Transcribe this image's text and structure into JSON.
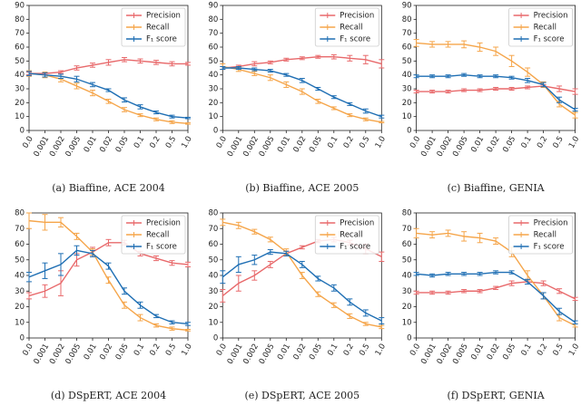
{
  "chart_data": [
    {
      "type": "line",
      "title": "(a) Biaffine, ACE 2004",
      "categories": [
        "0.0",
        "0.001",
        "0.002",
        "0.005",
        "0.01",
        "0.02",
        "0.05",
        "0.1",
        "0.2",
        "0.5",
        "1.0"
      ],
      "ylim": [
        0,
        90
      ],
      "yticks": [
        0,
        10,
        20,
        30,
        40,
        50,
        60,
        70,
        80,
        90
      ],
      "legend": "upper right",
      "series": [
        {
          "name": "Precision",
          "color": "#e8696b",
          "values": [
            41,
            41,
            42,
            45,
            47,
            49,
            51,
            50,
            49,
            48,
            48
          ],
          "errors": [
            1,
            1,
            1,
            1.5,
            1.5,
            2,
            1.5,
            1.5,
            1.5,
            1.5,
            1
          ]
        },
        {
          "name": "Recall",
          "color": "#f5a54a",
          "values": [
            41,
            40,
            37,
            32,
            27,
            21,
            15,
            11,
            8,
            6,
            5
          ],
          "errors": [
            2,
            2,
            2,
            2,
            2,
            1.5,
            1.5,
            1,
            1,
            1,
            0.5
          ]
        },
        {
          "name": "F₁ score",
          "color": "#1f6fb4",
          "values": [
            41,
            40,
            39,
            37,
            33,
            29,
            22,
            17,
            13,
            10,
            9
          ],
          "errors": [
            1.5,
            1.5,
            1.5,
            2,
            1.5,
            1,
            1.5,
            1.5,
            1,
            1,
            0.5
          ]
        }
      ]
    },
    {
      "type": "line",
      "title": "(b) Biaffine, ACE 2005",
      "categories": [
        "0.0",
        "0.001",
        "0.002",
        "0.005",
        "0.01",
        "0.02",
        "0.05",
        "0.1",
        "0.2",
        "0.5",
        "1.0"
      ],
      "ylim": [
        0,
        90
      ],
      "yticks": [
        0,
        10,
        20,
        30,
        40,
        50,
        60,
        70,
        80,
        90
      ],
      "legend": "upper right",
      "series": [
        {
          "name": "Precision",
          "color": "#e8696b",
          "values": [
            45,
            46,
            48,
            49,
            51,
            52,
            53,
            53,
            52,
            51,
            48
          ],
          "errors": [
            1,
            1,
            1.5,
            1,
            1,
            1,
            1,
            1.5,
            2,
            3,
            3
          ]
        },
        {
          "name": "Recall",
          "color": "#f5a54a",
          "values": [
            46,
            44,
            41,
            38,
            33,
            28,
            21,
            16,
            11,
            8,
            6
          ],
          "errors": [
            2,
            1.5,
            1.5,
            2,
            2,
            2,
            1.5,
            1,
            1,
            1,
            0.5
          ]
        },
        {
          "name": "F₁ score",
          "color": "#1f6fb4",
          "values": [
            45,
            45,
            44,
            43,
            40,
            36,
            30,
            24,
            19,
            14,
            10
          ],
          "errors": [
            1,
            1,
            1,
            1,
            1,
            1.5,
            1,
            1,
            1,
            1.5,
            1
          ]
        }
      ]
    },
    {
      "type": "line",
      "title": "(c) Biaffine, GENIA",
      "categories": [
        "0.0",
        "0.001",
        "0.002",
        "0.005",
        "0.01",
        "0.02",
        "0.05",
        "0.1",
        "0.2",
        "0.5",
        "1.0"
      ],
      "ylim": [
        0,
        90
      ],
      "yticks": [
        0,
        10,
        20,
        30,
        40,
        50,
        60,
        70,
        80,
        90
      ],
      "legend": "upper right",
      "series": [
        {
          "name": "Precision",
          "color": "#e8696b",
          "values": [
            28,
            28,
            28,
            29,
            29,
            30,
            30,
            31,
            32,
            30,
            28
          ],
          "errors": [
            1,
            1,
            1,
            1,
            1,
            1,
            1,
            1,
            1,
            2,
            2
          ]
        },
        {
          "name": "Recall",
          "color": "#f5a54a",
          "values": [
            63,
            62,
            62,
            62,
            60,
            57,
            50,
            42,
            33,
            19,
            11
          ],
          "errors": [
            2.5,
            2,
            2,
            2.5,
            3,
            3,
            4,
            3,
            2,
            2,
            2
          ]
        },
        {
          "name": "F₁ score",
          "color": "#1f6fb4",
          "values": [
            39,
            39,
            39,
            40,
            39,
            39,
            38,
            36,
            33,
            22,
            15
          ],
          "errors": [
            1,
            1,
            1,
            1,
            1,
            1,
            1,
            1.5,
            1.5,
            2,
            1
          ]
        }
      ]
    },
    {
      "type": "line",
      "title": "(d) DSpERT, ACE 2004",
      "categories": [
        "0.0",
        "0.001",
        "0.002",
        "0.005",
        "0.01",
        "0.02",
        "0.05",
        "0.1",
        "0.2",
        "0.5",
        "1.0"
      ],
      "ylim": [
        0,
        80
      ],
      "yticks": [
        0,
        10,
        20,
        30,
        40,
        50,
        60,
        70,
        80
      ],
      "legend": "upper right",
      "series": [
        {
          "name": "Precision",
          "color": "#e8696b",
          "values": [
            27,
            30,
            35,
            50,
            55,
            61,
            61,
            54,
            51,
            48,
            47
          ],
          "errors": [
            2,
            4,
            8,
            4,
            3,
            2,
            1.5,
            1.5,
            1.5,
            1.5,
            1.5
          ]
        },
        {
          "name": "Recall",
          "color": "#f5a54a",
          "values": [
            75,
            74,
            74,
            65,
            55,
            37,
            21,
            13,
            8,
            6,
            5
          ],
          "errors": [
            5,
            5,
            3,
            2,
            2,
            2,
            2,
            2,
            1,
            1,
            0.5
          ]
        },
        {
          "name": "F₁ score",
          "color": "#1f6fb4",
          "values": [
            39,
            43,
            47,
            56,
            54,
            46,
            30,
            21,
            14,
            10,
            9
          ],
          "errors": [
            3,
            5,
            7,
            3,
            2,
            2,
            2,
            2,
            1,
            1,
            1
          ]
        }
      ]
    },
    {
      "type": "line",
      "title": "(e) DSpERT, ACE 2005",
      "categories": [
        "0.0",
        "0.001",
        "0.002",
        "0.005",
        "0.01",
        "0.02",
        "0.05",
        "0.1",
        "0.2",
        "0.5",
        "1.0"
      ],
      "ylim": [
        0,
        80
      ],
      "yticks": [
        0,
        10,
        20,
        30,
        40,
        50,
        60,
        70,
        80
      ],
      "legend": "upper right",
      "series": [
        {
          "name": "Precision",
          "color": "#e8696b",
          "values": [
            27,
            35,
            40,
            47,
            54,
            58,
            62,
            63,
            61,
            57,
            52
          ],
          "errors": [
            4,
            5,
            3,
            2,
            1.5,
            1,
            1,
            1.5,
            1.5,
            3,
            3
          ]
        },
        {
          "name": "Recall",
          "color": "#f5a54a",
          "values": [
            74,
            72,
            68,
            63,
            55,
            40,
            28,
            21,
            14,
            9,
            7
          ],
          "errors": [
            2,
            2,
            1.5,
            1.5,
            2,
            2,
            1.5,
            1.5,
            1.5,
            1,
            1
          ]
        },
        {
          "name": "F₁ score",
          "color": "#1f6fb4",
          "values": [
            39,
            47,
            50,
            55,
            54,
            47,
            38,
            32,
            23,
            16,
            11
          ],
          "errors": [
            4,
            5,
            3,
            1.5,
            1.5,
            2,
            1.5,
            2,
            2,
            2,
            2
          ]
        }
      ]
    },
    {
      "type": "line",
      "title": "(f) DSpERT, GENIA",
      "categories": [
        "0.0",
        "0.001",
        "0.002",
        "0.005",
        "0.01",
        "0.02",
        "0.05",
        "0.1",
        "0.2",
        "0.5",
        "1.0"
      ],
      "ylim": [
        0,
        80
      ],
      "yticks": [
        0,
        10,
        20,
        30,
        40,
        50,
        60,
        70,
        80
      ],
      "legend": "upper right",
      "series": [
        {
          "name": "Precision",
          "color": "#e8696b",
          "values": [
            29,
            29,
            29,
            30,
            30,
            32,
            35,
            36,
            35,
            30,
            25
          ],
          "errors": [
            1,
            1,
            1,
            1,
            1,
            1,
            1.5,
            1.5,
            1.5,
            1.5,
            1
          ]
        },
        {
          "name": "Recall",
          "color": "#f5a54a",
          "values": [
            67,
            66,
            67,
            65,
            64,
            62,
            55,
            40,
            27,
            13,
            8
          ],
          "errors": [
            3,
            2,
            2,
            3,
            3,
            2,
            3,
            3,
            2,
            2,
            1
          ]
        },
        {
          "name": "F₁ score",
          "color": "#1f6fb4",
          "values": [
            41,
            40,
            41,
            41,
            41,
            42,
            42,
            36,
            27,
            17,
            10
          ],
          "errors": [
            1,
            1,
            1,
            1,
            1,
            1,
            1,
            1.5,
            2,
            2,
            1
          ]
        }
      ]
    }
  ]
}
